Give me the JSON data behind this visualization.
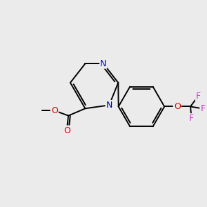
{
  "background_color": "#ebebeb",
  "bond_color": "#000000",
  "N_color": "#0000cc",
  "O_color": "#dd0000",
  "F_color": "#cc33cc",
  "line_width": 1.4,
  "figsize": [
    3.0,
    3.0
  ],
  "dpi": 100,
  "xlim": [
    0,
    10
  ],
  "ylim": [
    0,
    10
  ]
}
